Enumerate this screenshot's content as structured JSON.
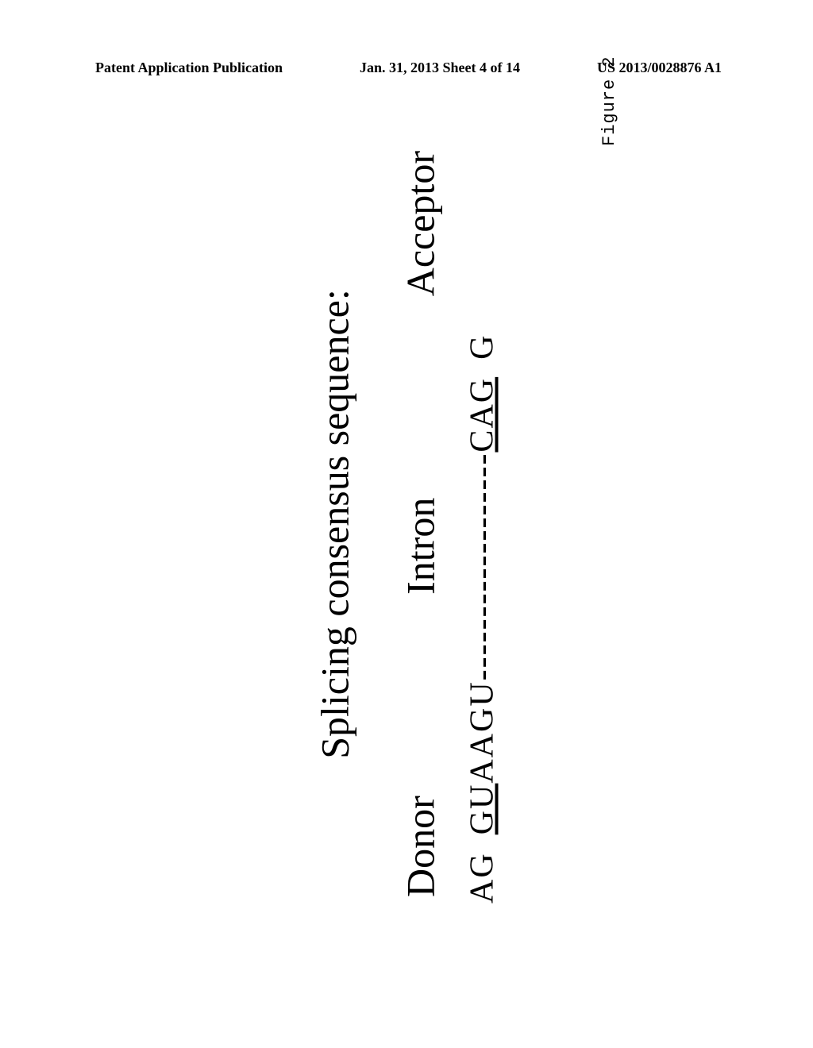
{
  "header": {
    "left": "Patent Application Publication",
    "center": "Jan. 31, 2013   Sheet 4 of 14",
    "right": "US 2013/0028876 A1"
  },
  "figure": {
    "title": "Splicing consensus sequence:",
    "labels": {
      "donor": "Donor",
      "intron": "Intron",
      "acceptor": "Acceptor"
    },
    "sequence": {
      "prefix": "AG",
      "donor_underline": "GU",
      "donor_tail": "AAGU",
      "dashes": "------------------",
      "acceptor_underline": "CAG",
      "suffix": "G"
    },
    "caption": "Figure 2"
  }
}
